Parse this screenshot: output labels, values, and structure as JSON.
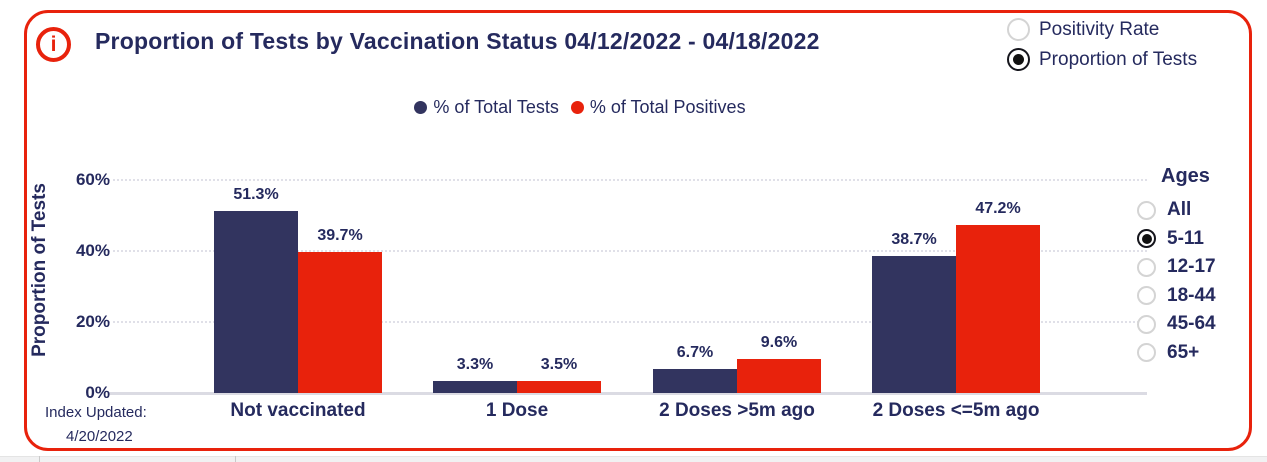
{
  "card": {
    "title": "Proportion of Tests by Vaccination Status 04/12/2022 - 04/18/2022",
    "info_icon_glyph": "i"
  },
  "metric_toggle": {
    "options": [
      {
        "label": "Positivity Rate",
        "selected": false
      },
      {
        "label": "Proportion of Tests",
        "selected": true
      }
    ]
  },
  "legend": [
    {
      "label": "% of Total Tests",
      "color": "#32345F"
    },
    {
      "label": "% of Total Positives",
      "color": "#E8220C"
    }
  ],
  "chart_data": {
    "type": "bar",
    "title": "Proportion of Tests by Vaccination Status 04/12/2022 - 04/18/2022",
    "categories": [
      "Not vaccinated",
      "1 Dose",
      "2 Doses >5m ago",
      "2 Doses <=5m ago"
    ],
    "series": [
      {
        "name": "% of Total Tests",
        "color": "#32345F",
        "values": [
          51.3,
          3.3,
          6.7,
          38.7
        ]
      },
      {
        "name": "% of Total Positives",
        "color": "#E8220C",
        "values": [
          39.7,
          3.5,
          9.6,
          47.2
        ]
      }
    ],
    "ylabel": "Proportion of Tests",
    "xlabel": "",
    "ylim": [
      0,
      60
    ],
    "yticks": [
      {
        "value": 0,
        "label": "0%"
      },
      {
        "value": 20,
        "label": "20%"
      },
      {
        "value": 40,
        "label": "40%"
      },
      {
        "value": 60,
        "label": "60%"
      }
    ],
    "grid": "horizontal-dotted",
    "legend_position": "top-center",
    "value_label_suffix": "%"
  },
  "ages_filter": {
    "title": "Ages",
    "options": [
      {
        "label": "All",
        "selected": false
      },
      {
        "label": "5-11",
        "selected": true
      },
      {
        "label": "12-17",
        "selected": false
      },
      {
        "label": "18-44",
        "selected": false
      },
      {
        "label": "45-64",
        "selected": false
      },
      {
        "label": "65+",
        "selected": false
      }
    ]
  },
  "footer": {
    "index_updated_label": "Index Updated:",
    "index_updated_date": "4/20/2022"
  },
  "colors": {
    "accent_red": "#E8220C",
    "navy": "#32345F",
    "text_navy": "#252A5E",
    "gridline": "#E0E0E8"
  }
}
